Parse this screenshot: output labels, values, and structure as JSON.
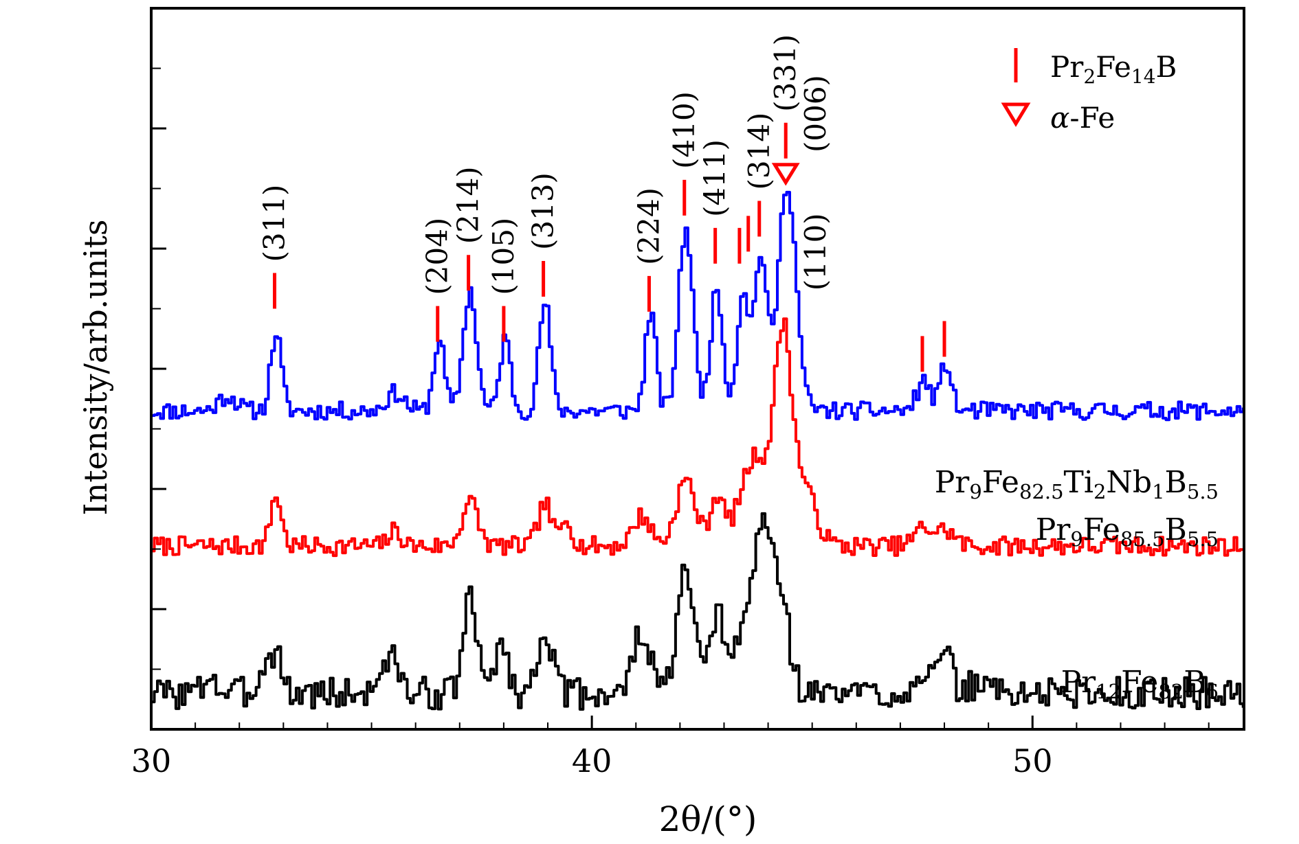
{
  "chart_data": {
    "type": "line",
    "title": "",
    "xlabel": "2θ/(°)",
    "ylabel": "Intensity/arb.units",
    "xlim": [
      30,
      54.8
    ],
    "ylim": [
      0,
      12
    ],
    "x_ticks": [
      30,
      40,
      50
    ],
    "x_tick_labels": [
      "30",
      "40",
      "50"
    ],
    "y_tick_labels_shown": false,
    "grid": false,
    "colors": {
      "blue": "#0000ff",
      "red": "#ff0000",
      "black": "#000000",
      "marker": "#ff0000"
    },
    "series": [
      {
        "name": "Pr12Fe82B6",
        "label_parts": [
          [
            "Pr",
            ""
          ],
          [
            "12",
            "sub"
          ],
          [
            "Fe",
            ""
          ],
          [
            "82",
            "sub"
          ],
          [
            "B",
            ""
          ],
          [
            "6",
            "sub"
          ]
        ],
        "color": "#000000",
        "baseline": 0.6,
        "noise": 0.55,
        "seed": 3,
        "peaks": [
          {
            "x": 31.3,
            "h": 0.35,
            "w": 0.12
          },
          {
            "x": 32.5,
            "h": 0.45,
            "w": 0.12
          },
          {
            "x": 32.8,
            "h": 0.75,
            "w": 0.12
          },
          {
            "x": 35.2,
            "h": 0.45,
            "w": 0.12
          },
          {
            "x": 35.5,
            "h": 0.55,
            "w": 0.12
          },
          {
            "x": 37.2,
            "h": 1.6,
            "w": 0.15
          },
          {
            "x": 37.9,
            "h": 0.85,
            "w": 0.15
          },
          {
            "x": 38.9,
            "h": 1.15,
            "w": 0.15
          },
          {
            "x": 41.1,
            "h": 1.05,
            "w": 0.18
          },
          {
            "x": 42.1,
            "h": 1.95,
            "w": 0.2
          },
          {
            "x": 42.8,
            "h": 1.35,
            "w": 0.13
          },
          {
            "x": 43.5,
            "h": 1.1,
            "w": 0.3
          },
          {
            "x": 43.9,
            "h": 2.3,
            "w": 0.22
          },
          {
            "x": 44.3,
            "h": 1.2,
            "w": 0.18
          },
          {
            "x": 47.5,
            "h": 0.4,
            "w": 0.2
          },
          {
            "x": 48.0,
            "h": 0.55,
            "w": 0.15
          },
          {
            "x": 48.8,
            "h": 0.2,
            "w": 0.2
          }
        ]
      },
      {
        "name": "Pr9Fe85.5B5.5",
        "label_parts": [
          [
            "Pr",
            ""
          ],
          [
            "9",
            "sub"
          ],
          [
            "Fe",
            ""
          ],
          [
            "85.5",
            "sub"
          ],
          [
            "B",
            ""
          ],
          [
            "5.5",
            "sub"
          ]
        ],
        "color": "#ff0000",
        "baseline": 3.05,
        "noise": 0.32,
        "seed": 7,
        "peaks": [
          {
            "x": 32.8,
            "h": 0.85,
            "w": 0.12
          },
          {
            "x": 35.5,
            "h": 0.25,
            "w": 0.15
          },
          {
            "x": 37.2,
            "h": 0.75,
            "w": 0.18
          },
          {
            "x": 38.9,
            "h": 0.7,
            "w": 0.15
          },
          {
            "x": 39.4,
            "h": 0.45,
            "w": 0.12
          },
          {
            "x": 41.1,
            "h": 0.5,
            "w": 0.2
          },
          {
            "x": 42.1,
            "h": 1.1,
            "w": 0.22
          },
          {
            "x": 42.8,
            "h": 0.8,
            "w": 0.15
          },
          {
            "x": 43.7,
            "h": 1.5,
            "w": 0.35
          },
          {
            "x": 44.3,
            "h": 2.95,
            "w": 0.18
          },
          {
            "x": 44.7,
            "h": 1.1,
            "w": 0.3
          },
          {
            "x": 47.5,
            "h": 0.3,
            "w": 0.2
          },
          {
            "x": 48.0,
            "h": 0.25,
            "w": 0.2
          }
        ]
      },
      {
        "name": "Pr9Fe82.5Ti2Nb1B5.5",
        "label_parts": [
          [
            "Pr",
            ""
          ],
          [
            "9",
            "sub"
          ],
          [
            "Fe",
            ""
          ],
          [
            "82.5",
            "sub"
          ],
          [
            "Ti",
            ""
          ],
          [
            "2",
            "sub"
          ],
          [
            "Nb",
            ""
          ],
          [
            "1",
            "sub"
          ],
          [
            "B",
            ""
          ],
          [
            "5.5",
            "sub"
          ]
        ],
        "color": "#0000ff",
        "baseline": 5.3,
        "noise": 0.3,
        "seed": 11,
        "peaks": [
          {
            "x": 31.7,
            "h": 0.25,
            "w": 0.2
          },
          {
            "x": 32.8,
            "h": 1.3,
            "w": 0.12
          },
          {
            "x": 35.5,
            "h": 0.3,
            "w": 0.2
          },
          {
            "x": 36.5,
            "h": 1.2,
            "w": 0.12
          },
          {
            "x": 37.2,
            "h": 2.0,
            "w": 0.15
          },
          {
            "x": 38.0,
            "h": 1.2,
            "w": 0.12
          },
          {
            "x": 38.9,
            "h": 1.8,
            "w": 0.13
          },
          {
            "x": 41.3,
            "h": 1.65,
            "w": 0.12
          },
          {
            "x": 42.1,
            "h": 3.05,
            "w": 0.16
          },
          {
            "x": 42.8,
            "h": 2.0,
            "w": 0.14
          },
          {
            "x": 43.4,
            "h": 2.0,
            "w": 0.13
          },
          {
            "x": 43.8,
            "h": 2.6,
            "w": 0.14
          },
          {
            "x": 44.4,
            "h": 3.8,
            "w": 0.2
          },
          {
            "x": 47.5,
            "h": 0.5,
            "w": 0.15
          },
          {
            "x": 48.0,
            "h": 0.8,
            "w": 0.12
          }
        ]
      }
    ],
    "pr2fe14b_markers": [
      {
        "x": 32.8,
        "y": 7.0,
        "label": "(311)"
      },
      {
        "x": 36.5,
        "y": 6.45,
        "label": "(204)"
      },
      {
        "x": 37.2,
        "y": 7.3,
        "label": "(214)"
      },
      {
        "x": 38.0,
        "y": 6.45,
        "label": "(105)"
      },
      {
        "x": 38.9,
        "y": 7.2,
        "label": "(313)"
      },
      {
        "x": 41.3,
        "y": 6.95,
        "label": "(224)"
      },
      {
        "x": 42.1,
        "y": 8.55,
        "label": "(410)"
      },
      {
        "x": 42.8,
        "y": 7.75,
        "label": "(411)"
      },
      {
        "x": 43.35,
        "y": 7.75,
        "label": null
      },
      {
        "x": 43.55,
        "y": 7.95,
        "label": null
      },
      {
        "x": 43.8,
        "y": 8.2,
        "label": "(314)"
      },
      {
        "x": 44.4,
        "y": 9.5,
        "label": "(331)"
      },
      {
        "x": 47.5,
        "y": 5.95,
        "label": null
      },
      {
        "x": 48.0,
        "y": 6.2,
        "label": null
      }
    ],
    "alpha_fe_marker": {
      "x": 44.4,
      "y": 9.1,
      "labels": [
        "(006)",
        "(110)"
      ]
    },
    "legend": {
      "position": "top-right",
      "items": [
        {
          "marker": "bar",
          "color": "#ff0000",
          "label_parts": [
            [
              "Pr",
              ""
            ],
            [
              "2",
              "sub"
            ],
            [
              "Fe",
              ""
            ],
            [
              "14",
              "sub"
            ],
            [
              "B",
              ""
            ]
          ]
        },
        {
          "marker": "triangle-down",
          "color": "#ff0000",
          "label_parts": [
            [
              "α",
              "i"
            ],
            [
              "-Fe",
              ""
            ]
          ]
        }
      ]
    }
  }
}
